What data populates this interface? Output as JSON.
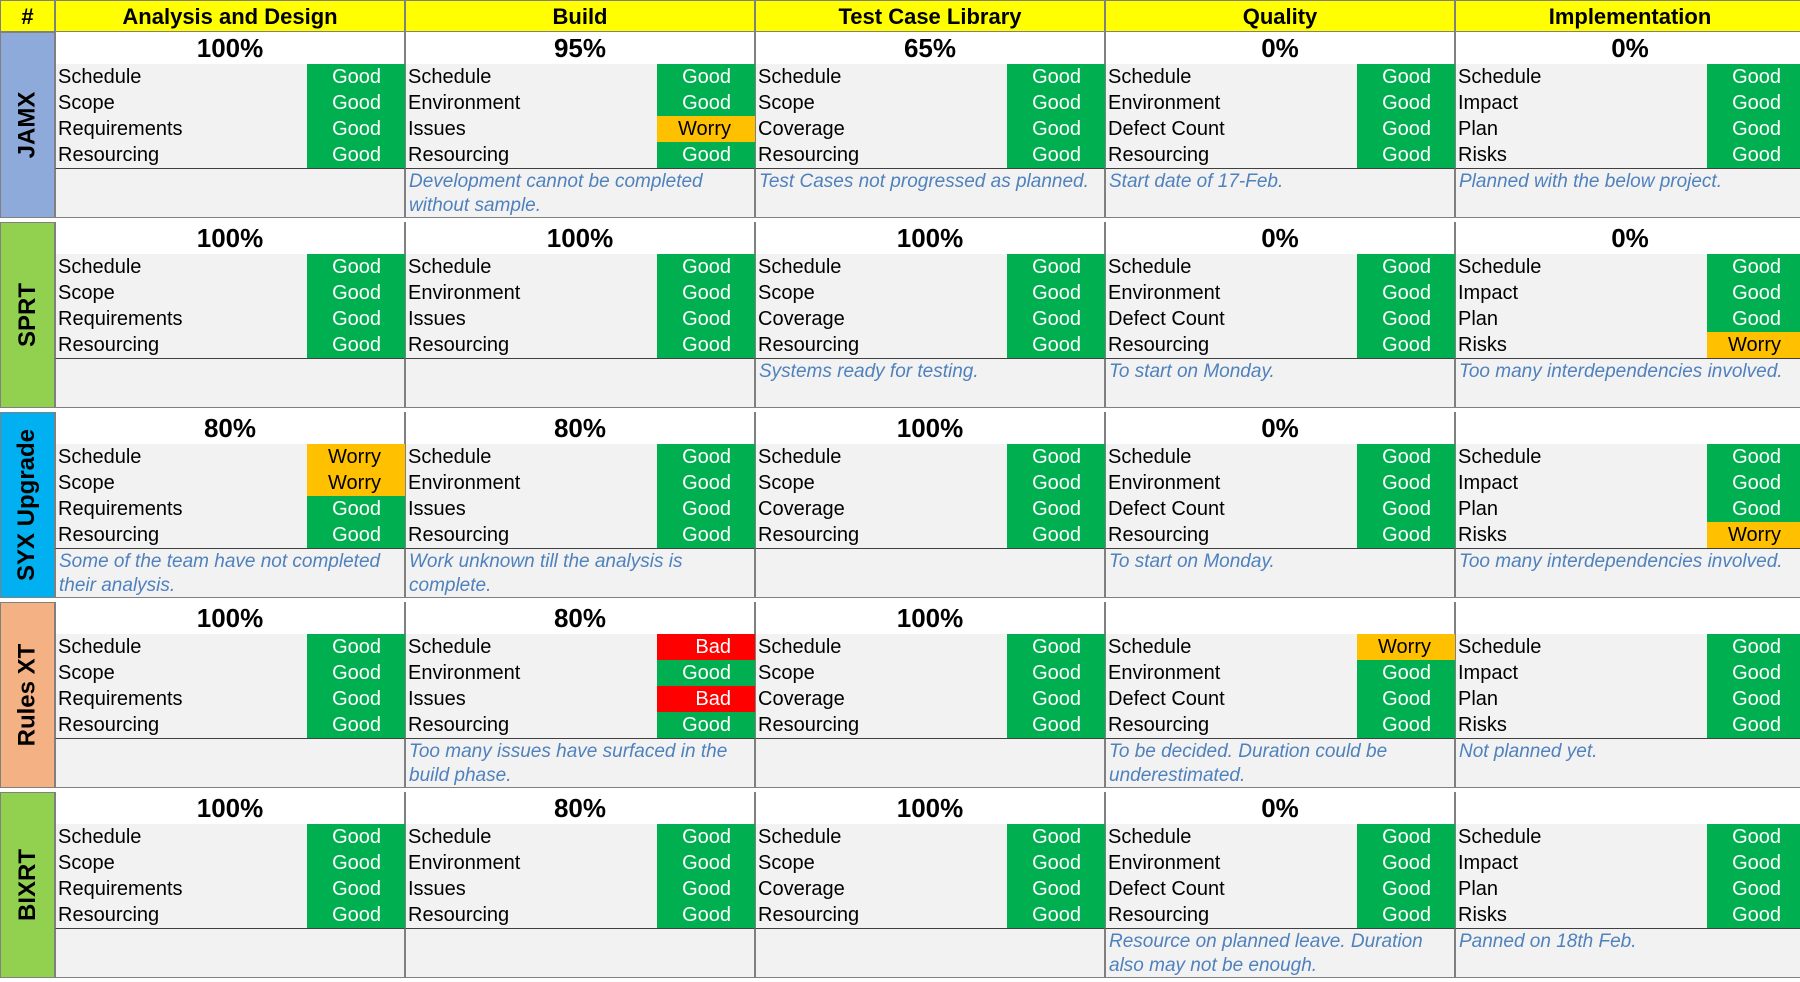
{
  "header": {
    "hash": "#",
    "columns": [
      "Analysis and Design",
      "Build",
      "Test Case Library",
      "Quality",
      "Implementation"
    ]
  },
  "status_colors": {
    "Good": "#00b050",
    "Worry": "#ffc000",
    "Bad": "#ff0000"
  },
  "label_sets": [
    [
      "Schedule",
      "Scope",
      "Requirements",
      "Resourcing"
    ],
    [
      "Schedule",
      "Environment",
      "Issues",
      "Resourcing"
    ],
    [
      "Schedule",
      "Scope",
      "Coverage",
      "Resourcing"
    ],
    [
      "Schedule",
      "Environment",
      "Defect Count",
      "Resourcing"
    ],
    [
      "Schedule",
      "Impact",
      "Plan",
      "Risks"
    ]
  ],
  "projects": [
    {
      "name": "JAMX",
      "color": "#8eaadb",
      "percents": [
        "100%",
        "95%",
        "65%",
        "0%",
        "0%"
      ],
      "statuses": [
        [
          "Good",
          "Good",
          "Good",
          "Good"
        ],
        [
          "Good",
          "Good",
          "Worry",
          "Good"
        ],
        [
          "Good",
          "Good",
          "Good",
          "Good"
        ],
        [
          "Good",
          "Good",
          "Good",
          "Good"
        ],
        [
          "Good",
          "Good",
          "Good",
          "Good"
        ]
      ],
      "notes": [
        "",
        "Development cannot be completed without sample.",
        "Test Cases not progressed as planned.",
        "Start date of 17-Feb.",
        "Planned with the below project."
      ]
    },
    {
      "name": "SPRT",
      "color": "#92d050",
      "percents": [
        "100%",
        "100%",
        "100%",
        "0%",
        "0%"
      ],
      "statuses": [
        [
          "Good",
          "Good",
          "Good",
          "Good"
        ],
        [
          "Good",
          "Good",
          "Good",
          "Good"
        ],
        [
          "Good",
          "Good",
          "Good",
          "Good"
        ],
        [
          "Good",
          "Good",
          "Good",
          "Good"
        ],
        [
          "Good",
          "Good",
          "Good",
          "Worry"
        ]
      ],
      "notes": [
        "",
        "",
        "Systems ready for testing.",
        "To start on Monday.",
        "Too many interdependencies involved."
      ]
    },
    {
      "name": "SYX Upgrade",
      "color": "#00b0f0",
      "percents": [
        "80%",
        "80%",
        "100%",
        "0%",
        ""
      ],
      "statuses": [
        [
          "Worry",
          "Worry",
          "Good",
          "Good"
        ],
        [
          "Good",
          "Good",
          "Good",
          "Good"
        ],
        [
          "Good",
          "Good",
          "Good",
          "Good"
        ],
        [
          "Good",
          "Good",
          "Good",
          "Good"
        ],
        [
          "Good",
          "Good",
          "Good",
          "Worry"
        ]
      ],
      "notes": [
        "Some of the team have not completed their analysis.",
        "Work unknown till the analysis is complete.",
        "",
        "To start on Monday.",
        "Too many interdependencies involved."
      ]
    },
    {
      "name": "Rules XT",
      "color": "#f4b183",
      "percents": [
        "100%",
        "80%",
        "100%",
        "",
        ""
      ],
      "statuses": [
        [
          "Good",
          "Good",
          "Good",
          "Good"
        ],
        [
          "Bad",
          "Good",
          "Bad",
          "Good"
        ],
        [
          "Good",
          "Good",
          "Good",
          "Good"
        ],
        [
          "Worry",
          "Good",
          "Good",
          "Good"
        ],
        [
          "Good",
          "Good",
          "Good",
          "Good"
        ]
      ],
      "notes": [
        "",
        "Too many issues have surfaced in the build phase.",
        "",
        "To be decided. Duration could be underestimated.",
        "Not planned yet."
      ]
    },
    {
      "name": "BIXRT",
      "color": "#92d050",
      "percents": [
        "100%",
        "80%",
        "100%",
        "0%",
        ""
      ],
      "statuses": [
        [
          "Good",
          "Good",
          "Good",
          "Good"
        ],
        [
          "Good",
          "Good",
          "Good",
          "Good"
        ],
        [
          "Good",
          "Good",
          "Good",
          "Good"
        ],
        [
          "Good",
          "Good",
          "Good",
          "Good"
        ],
        [
          "Good",
          "Good",
          "Good",
          "Good"
        ]
      ],
      "notes": [
        "",
        "",
        "",
        "Resource on planned leave. Duration also may not be enough.",
        "Panned on 18th Feb."
      ]
    }
  ]
}
